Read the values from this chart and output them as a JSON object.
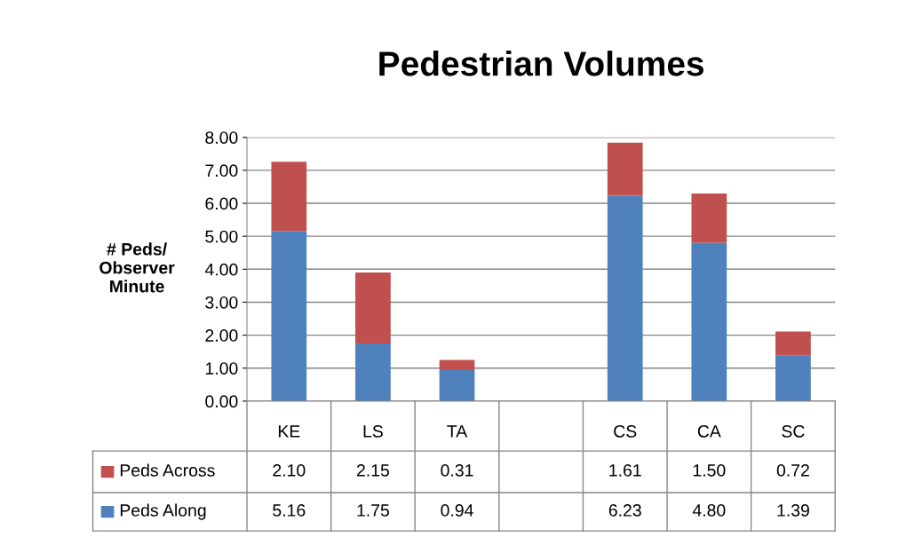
{
  "chart_data": {
    "type": "bar",
    "stacked": true,
    "title": "Pedestrian Volumes",
    "ylabel": "# Peds/\nObserver\nMinute",
    "categories": [
      "KE",
      "LS",
      "TA",
      null,
      "CS",
      "CA",
      "SC"
    ],
    "series": [
      {
        "name": "Peds Along",
        "color": "#4f81bd",
        "values": [
          5.16,
          1.75,
          0.94,
          null,
          6.23,
          4.8,
          1.39
        ],
        "value_labels": [
          "5.16",
          "1.75",
          "0.94",
          null,
          "6.23",
          "4.80",
          "1.39"
        ]
      },
      {
        "name": "Peds Across",
        "color": "#c0504d",
        "values": [
          2.1,
          2.15,
          0.31,
          null,
          1.61,
          1.5,
          0.72
        ],
        "value_labels": [
          "2.10",
          "2.15",
          "0.31",
          null,
          "1.61",
          "1.50",
          "0.72"
        ]
      }
    ],
    "ylim": [
      0,
      8
    ],
    "yticks": [
      {
        "value": 0,
        "label": "0.00"
      },
      {
        "value": 1,
        "label": "1.00"
      },
      {
        "value": 2,
        "label": "2.00"
      },
      {
        "value": 3,
        "label": "3.00"
      },
      {
        "value": 4,
        "label": "4.00"
      },
      {
        "value": 5,
        "label": "5.00"
      },
      {
        "value": 6,
        "label": "6.00"
      },
      {
        "value": 7,
        "label": "7.00"
      },
      {
        "value": 8,
        "label": "8.00"
      }
    ],
    "grid": "y",
    "legend": "bottom"
  }
}
